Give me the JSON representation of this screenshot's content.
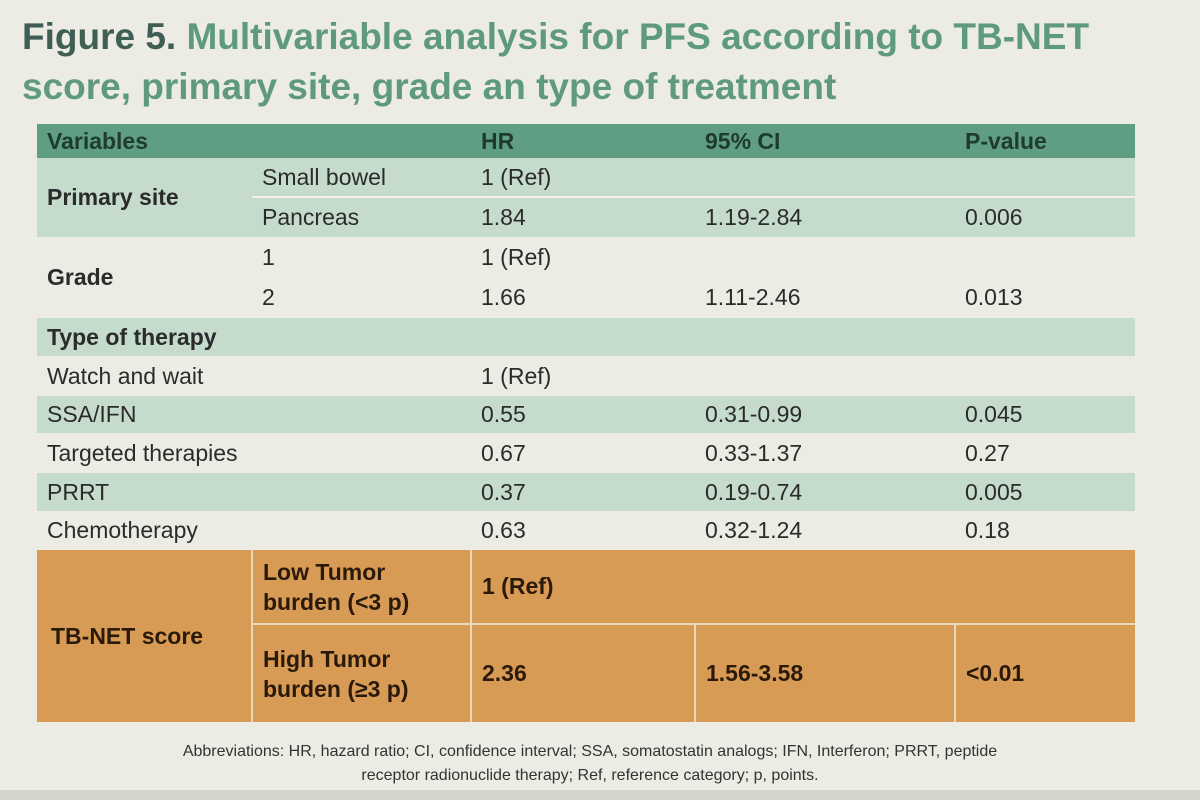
{
  "title": {
    "figure_label": "Figure 5.",
    "text": "Multivariable analysis for PFS according to TB-NET score, primary site, grade an type of treatment"
  },
  "table": {
    "headers": [
      "Variables",
      "HR",
      "95% CI",
      "P-value"
    ],
    "primary_site": {
      "label": "Primary site",
      "rows": [
        {
          "sub": "Small bowel",
          "hr": "1 (Ref)",
          "ci": "",
          "p": ""
        },
        {
          "sub": "Pancreas",
          "hr": "1.84",
          "ci": "1.19-2.84",
          "p": "0.006"
        }
      ]
    },
    "grade": {
      "label": "Grade",
      "rows": [
        {
          "sub": "1",
          "hr": "1 (Ref)",
          "ci": "",
          "p": ""
        },
        {
          "sub": "2",
          "hr": "1.66",
          "ci": "1.11-2.46",
          "p": "0.013"
        }
      ]
    },
    "therapy": {
      "label": "Type of therapy",
      "rows": [
        {
          "name": "Watch and wait",
          "hr": "1 (Ref)",
          "ci": "",
          "p": ""
        },
        {
          "name": "SSA/IFN",
          "hr": "0.55",
          "ci": "0.31-0.99",
          "p": "0.045"
        },
        {
          "name": "Targeted therapies",
          "hr": "0.67",
          "ci": "0.33-1.37",
          "p": "0.27"
        },
        {
          "name": "PRRT",
          "hr": "0.37",
          "ci": "0.19-0.74",
          "p": "0.005"
        },
        {
          "name": "Chemotherapy",
          "hr": "0.63",
          "ci": "0.32-1.24",
          "p": "0.18"
        }
      ]
    },
    "tbnet": {
      "label": "TB-NET score",
      "rows": [
        {
          "sub_line1": "Low Tumor",
          "sub_line2": "burden (<3 p)",
          "hr": "1 (Ref)",
          "ci": "",
          "p": ""
        },
        {
          "sub_line1": "High Tumor",
          "sub_line2": "burden (≥3 p)",
          "hr": "2.36",
          "ci": "1.56-3.58",
          "p": "<0.01"
        }
      ]
    }
  },
  "abbreviations": {
    "line1": "Abbreviations: HR, hazard ratio; CI, confidence interval; SSA, somatostatin analogs; IFN, Interferon; PRRT, peptide",
    "line2": "receptor radionuclide therapy; Ref, reference category; p, points."
  },
  "colors": {
    "title": "#5e9a7b",
    "header_bg": "#5f9e82",
    "row_green": "#c5dccd",
    "row_plain": "#ecebe4",
    "tbnet_bg": "#d89b55"
  }
}
